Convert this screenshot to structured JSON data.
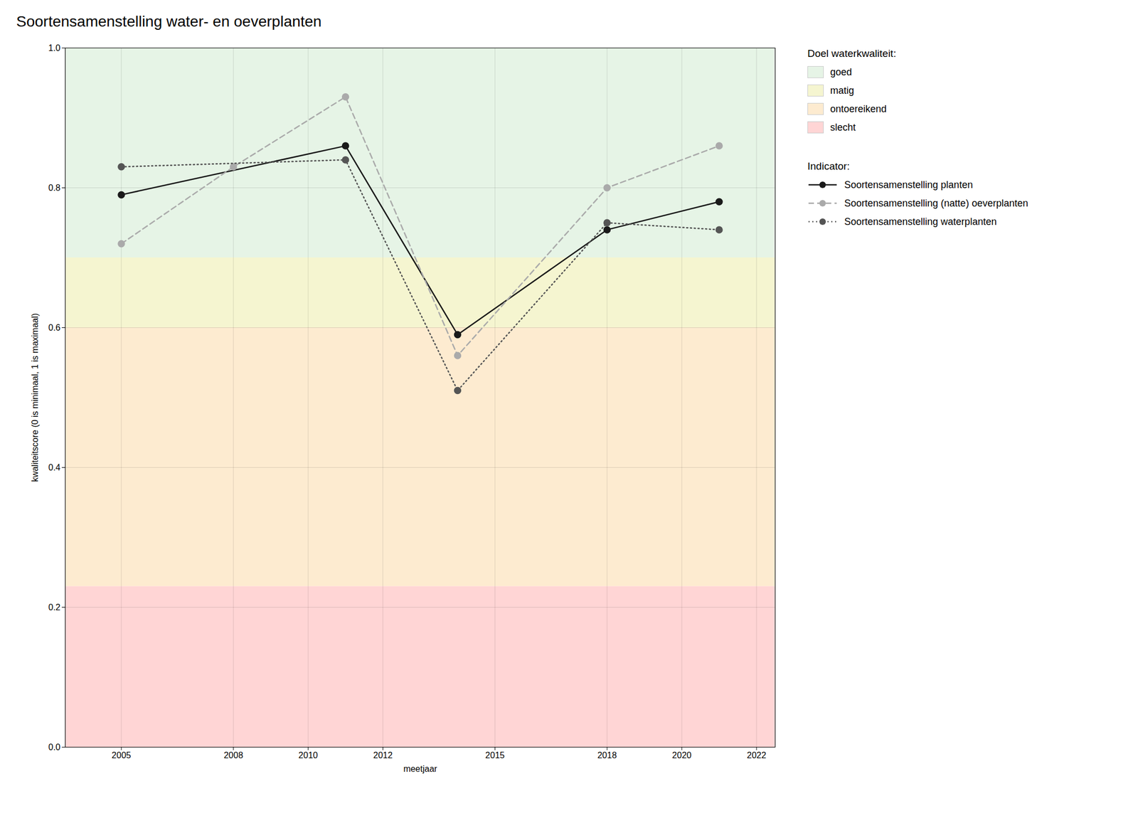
{
  "chart_data": {
    "type": "line",
    "title": "Soortensamenstelling water- en oeverplanten",
    "xlabel": "meetjaar",
    "ylabel": "kwaliteitscore (0 is minimaal, 1 is maximaal)",
    "xlim": [
      2003.5,
      2022.5
    ],
    "ylim": [
      0.0,
      1.0
    ],
    "xticks": [
      2005,
      2008,
      2010,
      2012,
      2015,
      2018,
      2020,
      2022
    ],
    "yticks": [
      {
        "value": 0,
        "label": "0.0"
      },
      0.2,
      0.4,
      0.6,
      0.8,
      {
        "value": 1,
        "label": "1.0"
      }
    ],
    "grid": true,
    "legend": "right",
    "zones_title": "Doel waterkwaliteit:",
    "zones": [
      {
        "ymin": 0.0,
        "ymax": 0.23,
        "color": "#ffd5d5",
        "label": "slecht"
      },
      {
        "ymin": 0.23,
        "ymax": 0.6,
        "color": "#fdebd0",
        "label": "ontoereikend"
      },
      {
        "ymin": 0.6,
        "ymax": 0.7,
        "color": "#f5f5d0",
        "label": "matig"
      },
      {
        "ymin": 0.7,
        "ymax": 1.0,
        "color": "#e6f4e6",
        "label": "goed"
      }
    ],
    "legend_title": "Indicator:",
    "series": [
      {
        "name": "Soortensamenstelling planten",
        "color": "#1a1a1a",
        "line_style": "solid",
        "marker": "circle",
        "x": [
          2005,
          2011,
          2014,
          2018,
          2021
        ],
        "values": [
          0.79,
          0.86,
          0.59,
          0.74,
          0.78
        ]
      },
      {
        "name": "Soortensamenstelling (natte) oeverplanten",
        "color": "#aaaaaa",
        "line_style": "dashed",
        "marker": "circle",
        "x": [
          2005,
          2008,
          2011,
          2014,
          2018,
          2021
        ],
        "values": [
          0.72,
          0.83,
          0.93,
          0.56,
          0.8,
          0.86
        ]
      },
      {
        "name": "Soortensamenstelling waterplanten",
        "color": "#555555",
        "line_style": "dotted",
        "marker": "circle",
        "x": [
          2005,
          2011,
          2014,
          2018,
          2021
        ],
        "values": [
          0.83,
          0.84,
          0.51,
          0.75,
          0.74
        ]
      }
    ]
  }
}
